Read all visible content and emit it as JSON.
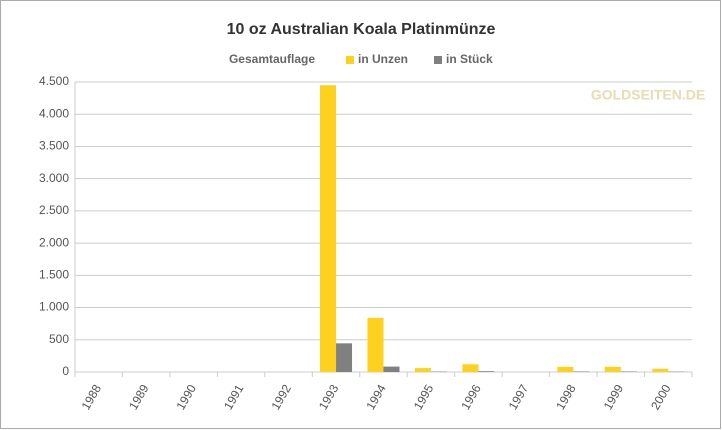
{
  "chart_data": {
    "type": "bar",
    "title": "10 oz Australian Koala Platinmünze",
    "legend_title": "Gesamtauflage",
    "watermark": "GOLDSEITEN.DE",
    "categories": [
      "1988",
      "1989",
      "1990",
      "1991",
      "1992",
      "1993",
      "1994",
      "1995",
      "1996",
      "1997",
      "1998",
      "1999",
      "2000"
    ],
    "series": [
      {
        "name": "in Unzen",
        "color": "#fdd11d",
        "values": [
          0,
          0,
          0,
          0,
          0,
          4450,
          840,
          60,
          120,
          0,
          80,
          80,
          50
        ]
      },
      {
        "name": "in Stück",
        "color": "#808080",
        "values": [
          0,
          0,
          0,
          0,
          0,
          445,
          84,
          6,
          12,
          0,
          8,
          8,
          5
        ]
      }
    ],
    "ylim": [
      0,
      4500
    ],
    "yticks": [
      0,
      500,
      {
        "value": 1000,
        "label": "1.000"
      },
      {
        "value": 1500,
        "label": "1.500"
      },
      {
        "value": 2000,
        "label": "2.000"
      },
      {
        "value": 2500,
        "label": "2.500"
      },
      {
        "value": 3000,
        "label": "3.000"
      },
      {
        "value": 3500,
        "label": "3.500"
      },
      {
        "value": 4000,
        "label": "4.000"
      },
      {
        "value": 4500,
        "label": "4.500"
      }
    ],
    "grid": true
  }
}
